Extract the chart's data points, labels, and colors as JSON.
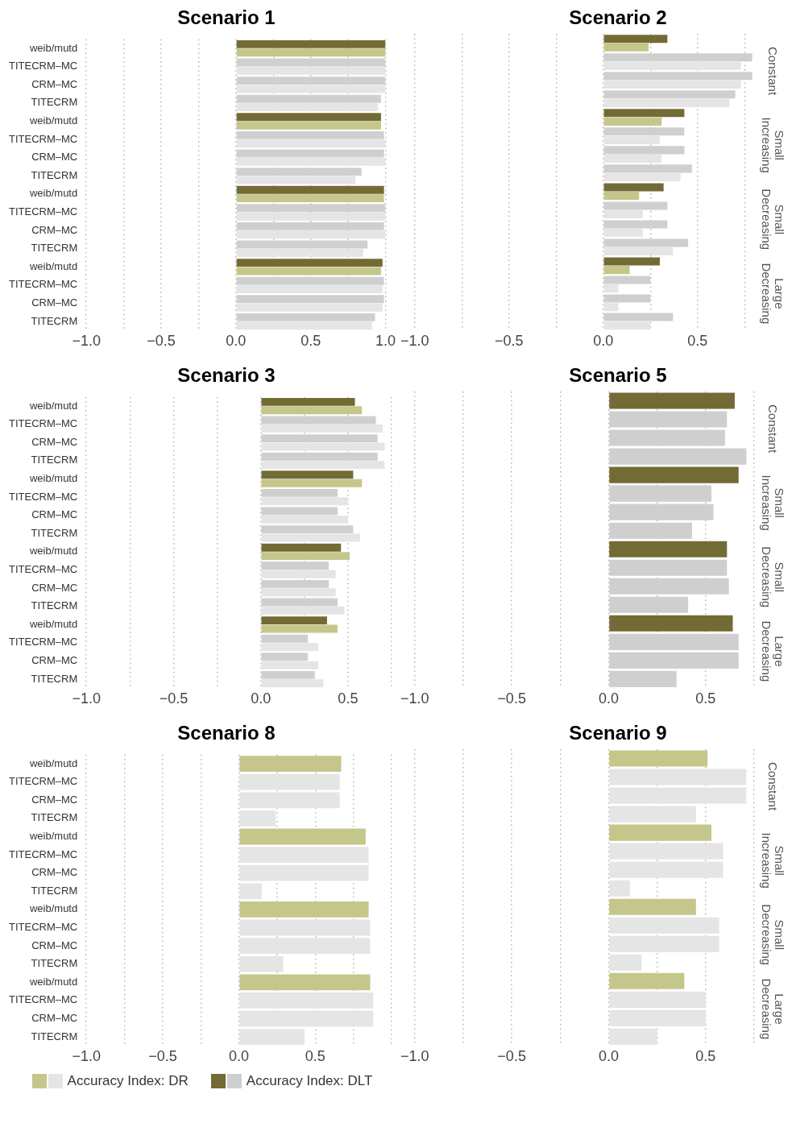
{
  "chart_data": [
    {
      "type": "bar",
      "orientation": "horizontal",
      "title": "Scenario 1",
      "categories": [
        "weib/mutd",
        "TITECRM–MC",
        "CRM–MC",
        "TITECRM",
        "weib/mutd",
        "TITECRM–MC",
        "CRM–MC",
        "TITECRM",
        "weib/mutd",
        "TITECRM–MC",
        "CRM–MC",
        "TITECRM",
        "weib/mutd",
        "TITECRM–MC",
        "CRM–MC",
        "TITECRM"
      ],
      "series": [
        {
          "values": [
            1.0,
            1.0,
            1.0,
            0.97,
            0.97,
            0.99,
            0.99,
            0.84,
            0.99,
            1.0,
            0.99,
            0.88,
            0.98,
            0.99,
            0.99,
            0.93
          ],
          "colors": [
            "#736b35",
            "#cfcfcf",
            "#cfcfcf",
            "#cfcfcf",
            "#736b35",
            "#cfcfcf",
            "#cfcfcf",
            "#cfcfcf",
            "#736b35",
            "#cfcfcf",
            "#cfcfcf",
            "#cfcfcf",
            "#736b35",
            "#cfcfcf",
            "#cfcfcf",
            "#cfcfcf"
          ]
        },
        {
          "values": [
            1.0,
            1.0,
            1.0,
            0.95,
            0.97,
            1.0,
            1.0,
            0.8,
            0.99,
            1.0,
            1.0,
            0.85,
            0.97,
            0.98,
            0.98,
            0.91
          ],
          "colors": [
            "#c5c68a",
            "#e5e5e5",
            "#e5e5e5",
            "#e5e5e5",
            "#c5c68a",
            "#e5e5e5",
            "#e5e5e5",
            "#e5e5e5",
            "#c5c68a",
            "#e5e5e5",
            "#e5e5e5",
            "#e5e5e5",
            "#c5c68a",
            "#e5e5e5",
            "#e5e5e5",
            "#e5e5e5"
          ]
        }
      ],
      "xlim": [
        -1,
        1
      ],
      "xticks": [
        {
          "value": -1,
          "label": "−1.0"
        },
        {
          "value": -0.75,
          "label": null
        },
        {
          "value": -0.5,
          "label": "−0.5"
        },
        {
          "value": -0.25,
          "label": null
        },
        {
          "value": 0,
          "label": "0.0"
        },
        {
          "value": 0.25,
          "label": null
        },
        {
          "value": 0.5,
          "label": "0.5"
        },
        {
          "value": 0.75,
          "label": null
        },
        {
          "value": 1,
          "label": "1.0"
        }
      ],
      "grid": "x"
    },
    {
      "type": "bar",
      "orientation": "horizontal",
      "title": "Scenario 2",
      "categories": [
        null,
        null,
        null,
        null,
        null,
        null,
        null,
        null,
        null,
        null,
        null,
        null,
        null,
        null,
        null,
        null
      ],
      "series": [
        {
          "values": [
            0.34,
            0.79,
            0.79,
            0.7,
            0.43,
            0.43,
            0.43,
            0.47,
            0.32,
            0.34,
            0.34,
            0.45,
            0.3,
            0.25,
            0.25,
            0.37
          ],
          "colors": [
            "#736b35",
            "#cfcfcf",
            "#cfcfcf",
            "#cfcfcf",
            "#736b35",
            "#cfcfcf",
            "#cfcfcf",
            "#cfcfcf",
            "#736b35",
            "#cfcfcf",
            "#cfcfcf",
            "#cfcfcf",
            "#736b35",
            "#cfcfcf",
            "#cfcfcf",
            "#cfcfcf"
          ]
        },
        {
          "values": [
            0.24,
            0.73,
            0.73,
            0.67,
            0.31,
            0.3,
            0.31,
            0.41,
            0.19,
            0.21,
            0.21,
            0.37,
            0.14,
            0.08,
            0.08,
            0.25
          ],
          "colors": [
            "#c5c68a",
            "#e5e5e5",
            "#e5e5e5",
            "#e5e5e5",
            "#c5c68a",
            "#e5e5e5",
            "#e5e5e5",
            "#e5e5e5",
            "#c5c68a",
            "#e5e5e5",
            "#e5e5e5",
            "#e5e5e5",
            "#c5c68a",
            "#e5e5e5",
            "#e5e5e5",
            "#e5e5e5"
          ]
        }
      ],
      "xlim": [
        -1,
        0.8
      ],
      "xticks": [
        {
          "value": -1,
          "label": "−1.0"
        },
        {
          "value": -0.75,
          "label": null
        },
        {
          "value": -0.5,
          "label": "−0.5"
        },
        {
          "value": -0.25,
          "label": null
        },
        {
          "value": 0,
          "label": "0.0"
        },
        {
          "value": 0.25,
          "label": null
        },
        {
          "value": 0.5,
          "label": "0.5"
        },
        {
          "value": 0.75,
          "label": null
        }
      ],
      "grid": "x",
      "tick_labels": "x",
      "annotations": [
        "Constant",
        "Small Increasing",
        "Small Decreasing",
        "Large Decreasing"
      ]
    },
    {
      "type": "bar",
      "orientation": "horizontal",
      "title": "Scenario 3",
      "categories": [
        "weib/mutd",
        "TITECRM–MC",
        "CRM–MC",
        "TITECRM",
        "weib/mutd",
        "TITECRM–MC",
        "CRM–MC",
        "TITECRM",
        "weib/mutd",
        "TITECRM–MC",
        "CRM–MC",
        "TITECRM",
        "weib/mutd",
        "TITECRM–MC",
        "CRM–MC",
        "TITECRM"
      ],
      "series": [
        {
          "values": [
            0.54,
            0.66,
            0.67,
            0.67,
            0.53,
            0.44,
            0.44,
            0.53,
            0.46,
            0.39,
            0.39,
            0.44,
            0.38,
            0.27,
            0.27,
            0.31
          ],
          "colors": [
            "#736b35",
            "#cfcfcf",
            "#cfcfcf",
            "#cfcfcf",
            "#736b35",
            "#cfcfcf",
            "#cfcfcf",
            "#cfcfcf",
            "#736b35",
            "#cfcfcf",
            "#cfcfcf",
            "#cfcfcf",
            "#736b35",
            "#cfcfcf",
            "#cfcfcf",
            "#cfcfcf"
          ]
        },
        {
          "values": [
            0.58,
            0.7,
            0.71,
            0.71,
            0.58,
            0.5,
            0.5,
            0.57,
            0.51,
            0.43,
            0.43,
            0.48,
            0.44,
            0.33,
            0.33,
            0.36
          ],
          "colors": [
            "#c5c68a",
            "#e5e5e5",
            "#e5e5e5",
            "#e5e5e5",
            "#c5c68a",
            "#e5e5e5",
            "#e5e5e5",
            "#e5e5e5",
            "#c5c68a",
            "#e5e5e5",
            "#e5e5e5",
            "#e5e5e5",
            "#c5c68a",
            "#e5e5e5",
            "#e5e5e5",
            "#e5e5e5"
          ]
        }
      ],
      "xlim": [
        -1,
        0.75
      ],
      "xticks": [
        {
          "value": -1,
          "label": "−1.0"
        },
        {
          "value": -0.75,
          "label": null
        },
        {
          "value": -0.5,
          "label": "−0.5"
        },
        {
          "value": -0.25,
          "label": null
        },
        {
          "value": 0,
          "label": "0.0"
        },
        {
          "value": 0.25,
          "label": null
        },
        {
          "value": 0.5,
          "label": "0.5"
        },
        {
          "value": 0.75,
          "label": null
        }
      ],
      "grid": "x"
    },
    {
      "type": "bar",
      "orientation": "horizontal",
      "title": "Scenario 5",
      "categories": [
        null,
        null,
        null,
        null,
        null,
        null,
        null,
        null,
        null,
        null,
        null,
        null,
        null,
        null,
        null,
        null
      ],
      "series": [
        {
          "values": [
            0.65,
            0.61,
            0.6,
            0.71,
            0.67,
            0.53,
            0.54,
            0.43,
            0.61,
            0.61,
            0.62,
            0.41,
            0.64,
            0.67,
            0.67,
            0.35
          ],
          "colors": [
            "#736b35",
            "#cfcfcf",
            "#cfcfcf",
            "#cfcfcf",
            "#736b35",
            "#cfcfcf",
            "#cfcfcf",
            "#cfcfcf",
            "#736b35",
            "#cfcfcf",
            "#cfcfcf",
            "#cfcfcf",
            "#736b35",
            "#cfcfcf",
            "#cfcfcf",
            "#cfcfcf"
          ]
        }
      ],
      "xlim": [
        -1,
        0.75
      ],
      "xticks": [
        {
          "value": -1,
          "label": "−1.0"
        },
        {
          "value": -0.75,
          "label": null
        },
        {
          "value": -0.5,
          "label": "−0.5"
        },
        {
          "value": -0.25,
          "label": null
        },
        {
          "value": 0,
          "label": "0.0"
        },
        {
          "value": 0.25,
          "label": null
        },
        {
          "value": 0.5,
          "label": "0.5"
        },
        {
          "value": 0.75,
          "label": null
        }
      ],
      "grid": "x",
      "tick_labels": "x",
      "annotations": [
        "Constant",
        "Small Increasing",
        "Small Decreasing",
        "Large Decreasing"
      ]
    },
    {
      "type": "bar",
      "orientation": "horizontal",
      "title": "Scenario 8",
      "categories": [
        "weib/mutd",
        "TITECRM–MC",
        "CRM–MC",
        "TITECRM",
        "weib/mutd",
        "TITECRM–MC",
        "CRM–MC",
        "TITECRM",
        "weib/mutd",
        "TITECRM–MC",
        "CRM–MC",
        "TITECRM",
        "weib/mutd",
        "TITECRM–MC",
        "CRM–MC",
        "TITECRM"
      ],
      "series": [
        {
          "name": "Accuracy Index: DLT",
          "values": [
            null,
            null,
            null,
            null,
            null,
            null,
            null,
            null,
            null,
            null,
            null,
            null,
            null,
            null,
            null,
            null
          ],
          "colors": [
            "#736b35",
            "#cfcfcf",
            "#cfcfcf",
            "#cfcfcf",
            "#736b35",
            "#cfcfcf",
            "#cfcfcf",
            "#cfcfcf",
            "#736b35",
            "#cfcfcf",
            "#cfcfcf",
            "#cfcfcf",
            "#736b35",
            "#cfcfcf",
            "#cfcfcf",
            "#cfcfcf"
          ]
        },
        {
          "name": "Accuracy Index: DR",
          "values": [
            0.67,
            0.66,
            0.66,
            0.24,
            0.83,
            0.85,
            0.85,
            0.15,
            0.85,
            0.86,
            0.86,
            0.29,
            0.86,
            0.88,
            0.88,
            0.43
          ],
          "colors": [
            "#c5c68a",
            "#e5e5e5",
            "#e5e5e5",
            "#e5e5e5",
            "#c5c68a",
            "#e5e5e5",
            "#e5e5e5",
            "#e5e5e5",
            "#c5c68a",
            "#e5e5e5",
            "#e5e5e5",
            "#e5e5e5",
            "#c5c68a",
            "#e5e5e5",
            "#e5e5e5",
            "#e5e5e5"
          ]
        }
      ],
      "xlim": [
        -1,
        1
      ],
      "xticks": [
        {
          "value": -1,
          "label": "−1.0"
        },
        {
          "value": -0.75,
          "label": null
        },
        {
          "value": -0.5,
          "label": "−0.5"
        },
        {
          "value": -0.25,
          "label": null
        },
        {
          "value": 0,
          "label": "0.0"
        },
        {
          "value": 0.25,
          "label": null
        },
        {
          "value": 0.5,
          "label": "0.5"
        },
        {
          "value": 0.75,
          "label": null
        },
        {
          "value": 1,
          "label": null
        }
      ],
      "grid": "x",
      "legend": "bottom"
    },
    {
      "type": "bar",
      "orientation": "horizontal",
      "title": "Scenario 9",
      "categories": [
        null,
        null,
        null,
        null,
        null,
        null,
        null,
        null,
        null,
        null,
        null,
        null,
        null,
        null,
        null,
        null
      ],
      "series": [
        {
          "values": [
            0.51,
            0.71,
            0.71,
            0.45,
            0.53,
            0.59,
            0.59,
            0.11,
            0.45,
            0.57,
            0.57,
            0.17,
            0.39,
            0.5,
            0.5,
            0.25
          ],
          "colors": [
            "#c5c68a",
            "#e5e5e5",
            "#e5e5e5",
            "#e5e5e5",
            "#c5c68a",
            "#e5e5e5",
            "#e5e5e5",
            "#e5e5e5",
            "#c5c68a",
            "#e5e5e5",
            "#e5e5e5",
            "#e5e5e5",
            "#c5c68a",
            "#e5e5e5",
            "#e5e5e5",
            "#e5e5e5"
          ]
        }
      ],
      "xlim": [
        -1,
        0.75
      ],
      "xticks": [
        {
          "value": -1,
          "label": "−1.0"
        },
        {
          "value": -0.75,
          "label": null
        },
        {
          "value": -0.5,
          "label": "−0.5"
        },
        {
          "value": -0.25,
          "label": null
        },
        {
          "value": 0,
          "label": "0.0"
        },
        {
          "value": 0.25,
          "label": null
        },
        {
          "value": 0.5,
          "label": "0.5"
        },
        {
          "value": 0.75,
          "label": null
        }
      ],
      "grid": "x",
      "tick_labels": "x",
      "annotations": [
        "Constant",
        "Small Increasing",
        "Small Decreasing",
        "Large Decreasing"
      ]
    }
  ]
}
